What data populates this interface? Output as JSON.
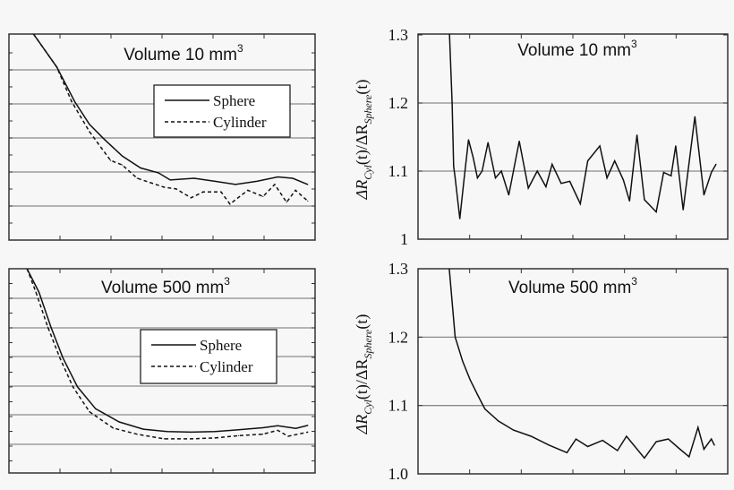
{
  "chart_data": [
    {
      "type": "line",
      "title": "Volume 10 mm",
      "title_superscript": "3",
      "xlabel": "",
      "ylabel": "",
      "xlim": [
        0,
        100
      ],
      "ylim": [
        0,
        6
      ],
      "grid": "horizontal",
      "legend": {
        "placement": "center-right",
        "entries": [
          "Sphere",
          "Cylinder"
        ]
      },
      "series": [
        {
          "name": "Sphere",
          "style": "solid",
          "x": [
            8,
            15.6,
            21.5,
            26.3,
            31.2,
            37,
            43,
            48.8,
            52.7,
            60.5,
            67.3,
            74,
            81,
            87.8,
            92.7,
            97.6
          ],
          "y": [
            6,
            5.04,
            4.03,
            3.37,
            2.93,
            2.45,
            2.1,
            1.96,
            1.75,
            1.8,
            1.71,
            1.62,
            1.71,
            1.84,
            1.8,
            1.62
          ]
        },
        {
          "name": "Cylinder",
          "style": "dashed",
          "x": [
            8,
            15.6,
            20.5,
            26.3,
            33.2,
            37,
            41.9,
            50.7,
            54.6,
            59.5,
            63.4,
            69.3,
            72.2,
            78,
            83,
            86.8,
            90.7,
            93.6,
            97.6
          ],
          "y": [
            6,
            5.04,
            4.03,
            3.16,
            2.32,
            2.19,
            1.8,
            1.54,
            1.49,
            1.23,
            1.4,
            1.4,
            1.05,
            1.45,
            1.27,
            1.62,
            1.1,
            1.45,
            1.14
          ]
        }
      ]
    },
    {
      "type": "line",
      "title": "Volume 10 mm",
      "title_superscript": "3",
      "xlabel": "",
      "ylabel": "ΔR_Cyl(t)/ΔR_Sphere(t)",
      "ylabel_parts": {
        "delta1": "ΔR",
        "sub1": "Cyl",
        "mid": "(t)/ΔR",
        "sub2": "Sphere",
        "end": "(t)"
      },
      "xlim": [
        0,
        100
      ],
      "ylim": [
        1.0,
        1.3
      ],
      "yticks": [
        1,
        1.1,
        1.2,
        1.3
      ],
      "ytick_labels": [
        "1",
        "1.1",
        "1.2",
        "1.3"
      ],
      "grid": "horizontal",
      "series": [
        {
          "x": [
            10.1,
            11,
            11.5,
            12,
            13.5,
            14.9,
            16.3,
            17.8,
            19.2,
            20.7,
            22.6,
            25,
            26.9,
            29.3,
            32.7,
            35.6,
            38.5,
            41.3,
            43.3,
            46.2,
            49,
            52.4,
            54.8,
            58.7,
            61,
            63.5,
            66.3,
            68.3,
            70.7,
            73.1,
            76.9,
            79.3,
            81.7,
            83.2,
            85.6,
            89.4,
            92.3,
            94.7,
            96.2
          ],
          "y": [
            1.31,
            1.2,
            1.107,
            1.09,
            1.03,
            1.09,
            1.146,
            1.12,
            1.09,
            1.1,
            1.142,
            1.09,
            1.1,
            1.065,
            1.144,
            1.075,
            1.1,
            1.077,
            1.11,
            1.082,
            1.085,
            1.052,
            1.115,
            1.137,
            1.09,
            1.115,
            1.087,
            1.056,
            1.153,
            1.058,
            1.04,
            1.098,
            1.093,
            1.137,
            1.043,
            1.18,
            1.065,
            1.098,
            1.11
          ]
        }
      ]
    },
    {
      "type": "line",
      "title": "Volume 500 mm",
      "title_superscript": "3",
      "xlabel": "",
      "ylabel": "",
      "xlim": [
        0,
        100
      ],
      "ylim": [
        0,
        7
      ],
      "grid": "horizontal",
      "legend": {
        "placement": "center-right",
        "entries": [
          "Sphere",
          "Cylinder"
        ]
      },
      "series": [
        {
          "name": "Sphere",
          "style": "solid",
          "x": [
            5.9,
            9.8,
            13.7,
            17.6,
            22.4,
            28.3,
            36,
            43.9,
            51.7,
            59.5,
            67.3,
            75,
            82.9,
            87.8,
            93.7,
            97.6
          ],
          "y": [
            7,
            6.2,
            5,
            3.95,
            2.95,
            2.2,
            1.75,
            1.5,
            1.42,
            1.4,
            1.42,
            1.48,
            1.55,
            1.62,
            1.53,
            1.63
          ]
        },
        {
          "name": "Cylinder",
          "style": "dashed",
          "x": [
            5.9,
            8.8,
            12.7,
            16.6,
            20.9,
            26.3,
            34,
            41.8,
            50.7,
            59.5,
            67.3,
            75,
            82.9,
            87.8,
            91.2,
            97.6
          ],
          "y": [
            7,
            6.2,
            5,
            3.95,
            2.95,
            2.1,
            1.54,
            1.33,
            1.17,
            1.17,
            1.2,
            1.28,
            1.33,
            1.46,
            1.26,
            1.4
          ]
        }
      ]
    },
    {
      "type": "line",
      "title": "Volume 500 mm",
      "title_superscript": "3",
      "xlabel": "",
      "ylabel": "ΔR_Cyl(t)/ΔR_Sphere(t)",
      "ylabel_parts": {
        "delta1": "ΔR",
        "sub1": "Cyl",
        "mid": "(t)/ΔR",
        "sub2": "Sphere",
        "end": "(t)"
      },
      "xlim": [
        0,
        100
      ],
      "ylim": [
        1.0,
        1.3
      ],
      "yticks": [
        1.0,
        1.1,
        1.2,
        1.3
      ],
      "ytick_labels": [
        "1.0",
        "1.1",
        "1.2",
        "1.3"
      ],
      "grid": "horizontal",
      "series": [
        {
          "x": [
            10.1,
            12,
            14.4,
            16.8,
            19.2,
            21.6,
            26,
            30.8,
            36.5,
            42.3,
            48.1,
            51,
            54.8,
            59.6,
            64.4,
            67.3,
            73.1,
            76.9,
            80.8,
            84.6,
            87.5,
            90.4,
            92.3,
            94.7,
            95.7
          ],
          "y": [
            1.3,
            1.2,
            1.165,
            1.138,
            1.116,
            1.095,
            1.077,
            1.064,
            1.055,
            1.042,
            1.031,
            1.051,
            1.04,
            1.049,
            1.034,
            1.055,
            1.023,
            1.047,
            1.051,
            1.036,
            1.025,
            1.068,
            1.036,
            1.051,
            1.042
          ]
        }
      ]
    }
  ]
}
